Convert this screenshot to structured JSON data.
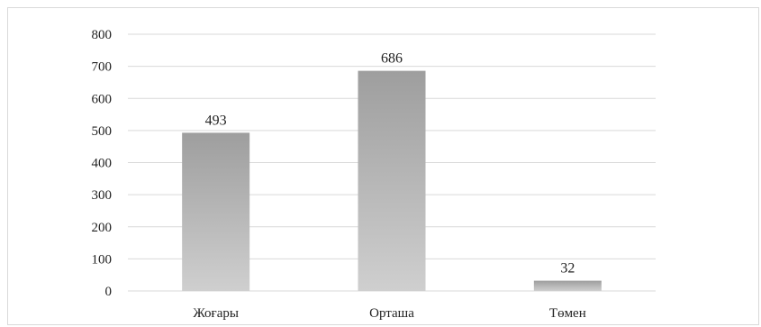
{
  "chart_data": {
    "type": "bar",
    "categories": [
      "Жоғары",
      "Орташа",
      "Төмен"
    ],
    "values": [
      493,
      686,
      32
    ],
    "data_labels": [
      "493",
      "686",
      "32"
    ],
    "title": "",
    "xlabel": "",
    "ylabel": "",
    "ylim": [
      0,
      800
    ],
    "yticks": [
      0,
      100,
      200,
      300,
      400,
      500,
      600,
      700,
      800
    ],
    "ytick_labels": [
      "0",
      "100",
      "200",
      "300",
      "400",
      "500",
      "600",
      "700",
      "800"
    ],
    "grid": true,
    "legend": "none",
    "colors": {
      "bar_top": "#9e9e9e",
      "bar_bottom": "#cfcfcf",
      "grid": "#d9d9d9"
    }
  }
}
